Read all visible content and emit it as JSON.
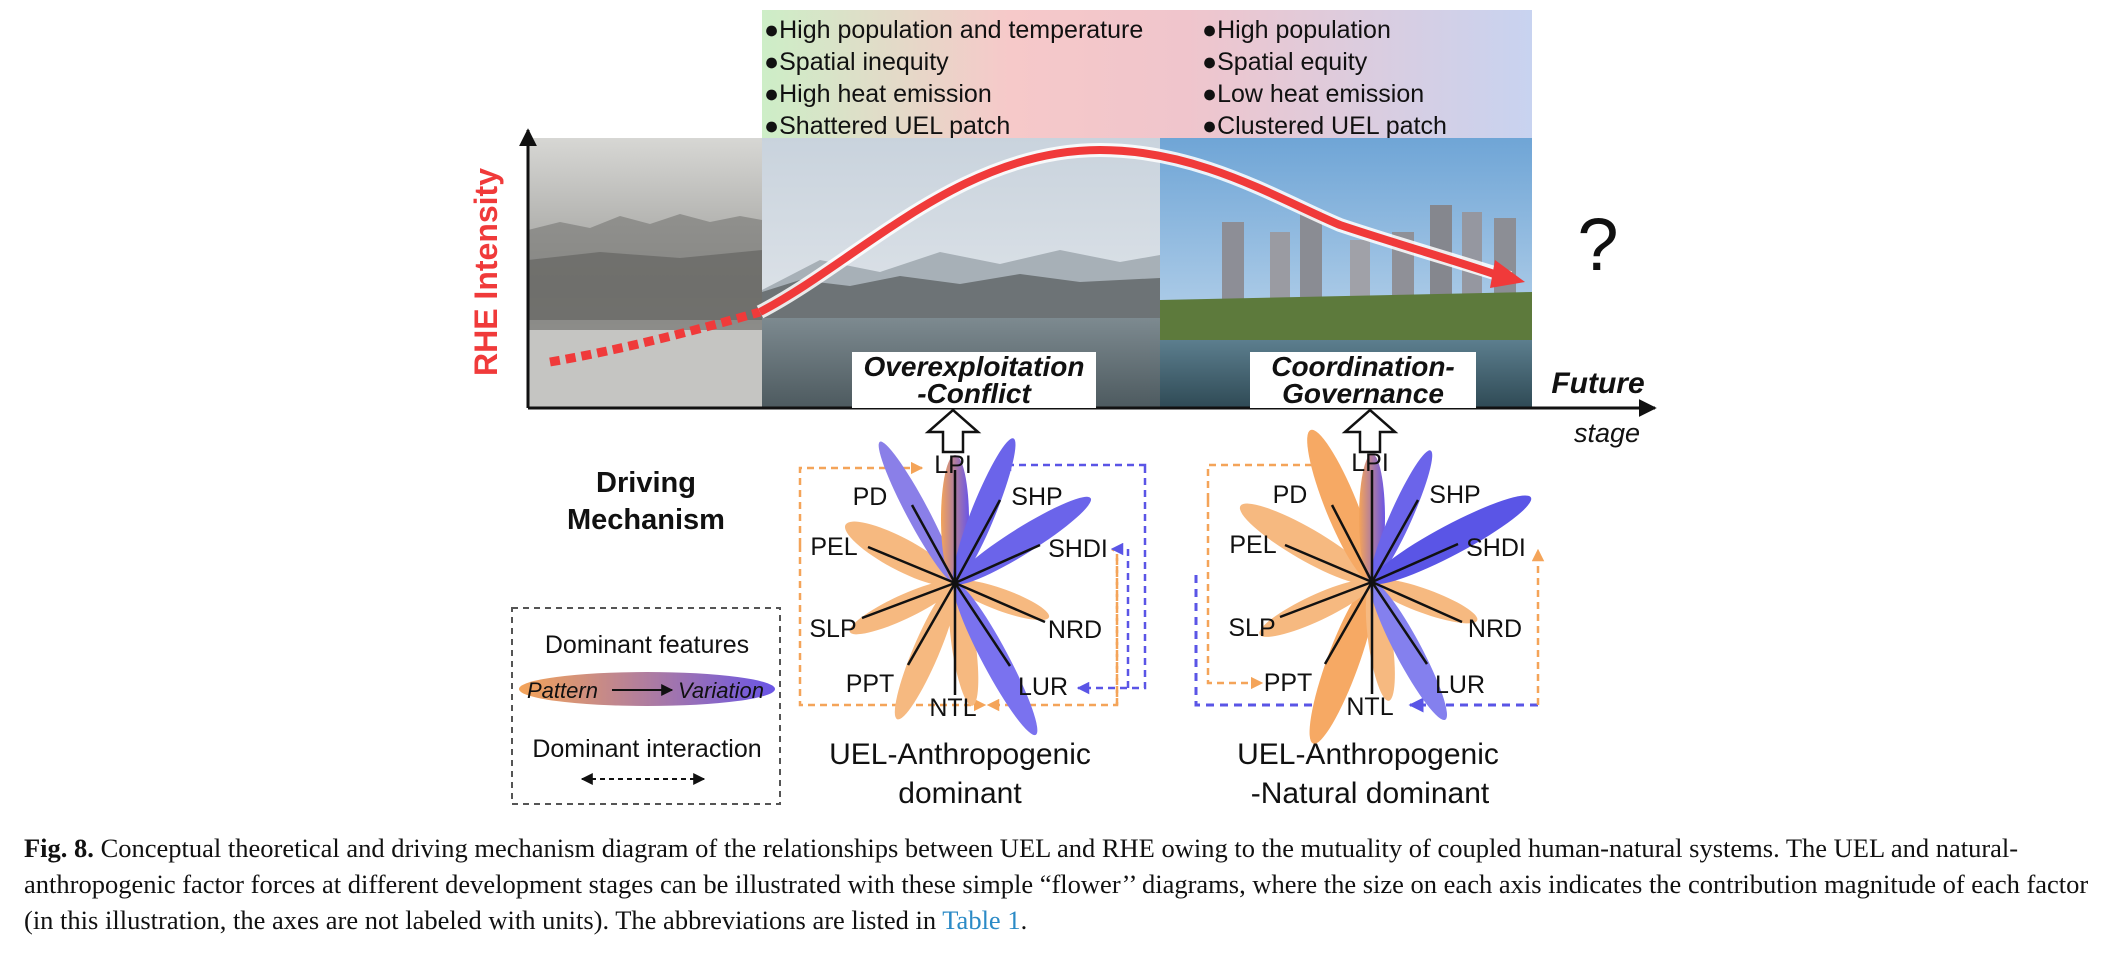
{
  "diagram": {
    "y_axis_label": "RHE Intensity",
    "x_axis_label_bold": "Future",
    "x_axis_label_italic": "stage",
    "question_mark": "?",
    "stages": [
      {
        "title_line1": "Overexploitation",
        "title_line2": "-Conflict"
      },
      {
        "title_line1": "Coordination-",
        "title_line2": "Governance"
      }
    ],
    "features_left": [
      "High population and temperature",
      "Spatial inequity",
      "High heat emission",
      "Shattered UEL patch"
    ],
    "features_right": [
      "High population",
      "Spatial equity",
      "Low heat emission",
      "Clustered UEL patch"
    ],
    "driving_mechanism": [
      "Driving",
      "Mechanism"
    ],
    "legend": {
      "features_title": "Dominant features",
      "pattern": "Pattern",
      "variation": "Variation",
      "interaction_title": "Dominant interaction"
    },
    "flowers": [
      {
        "caption_line1": "UEL-Anthropogenic",
        "caption_line2": "dominant",
        "labels": [
          "LPI",
          "SHP",
          "SHDI",
          "NRD",
          "LUR",
          "NTL",
          "PPT",
          "SLP",
          "PEL",
          "PD"
        ]
      },
      {
        "caption_line1": "UEL-Anthropogenic",
        "caption_line2": "-Natural dominant",
        "labels": [
          "LPI",
          "SHP",
          "SHDI",
          "NRD",
          "LUR",
          "NTL",
          "PPT",
          "SLP",
          "PEL",
          "PD"
        ]
      }
    ]
  },
  "caption": {
    "label": "Fig. 8.",
    "text": "Conceptual theoretical and driving mechanism diagram of the relationships between UEL and RHE owing to the mutuality of coupled human-natural systems. The UEL and natural-anthropogenic factor forces at different development stages can be illustrated with these simple “flower’’ diagrams, where the size on each axis indicates the contribution magnitude of each factor (in this illustration, the axes are not labeled with units). The abbreviations are listed in ",
    "link": "Table 1",
    "end": "."
  },
  "colors": {
    "curve": "#f03a3a",
    "pattern": "#f4a459",
    "variation": "#5a55e6",
    "axis": "#111111"
  }
}
